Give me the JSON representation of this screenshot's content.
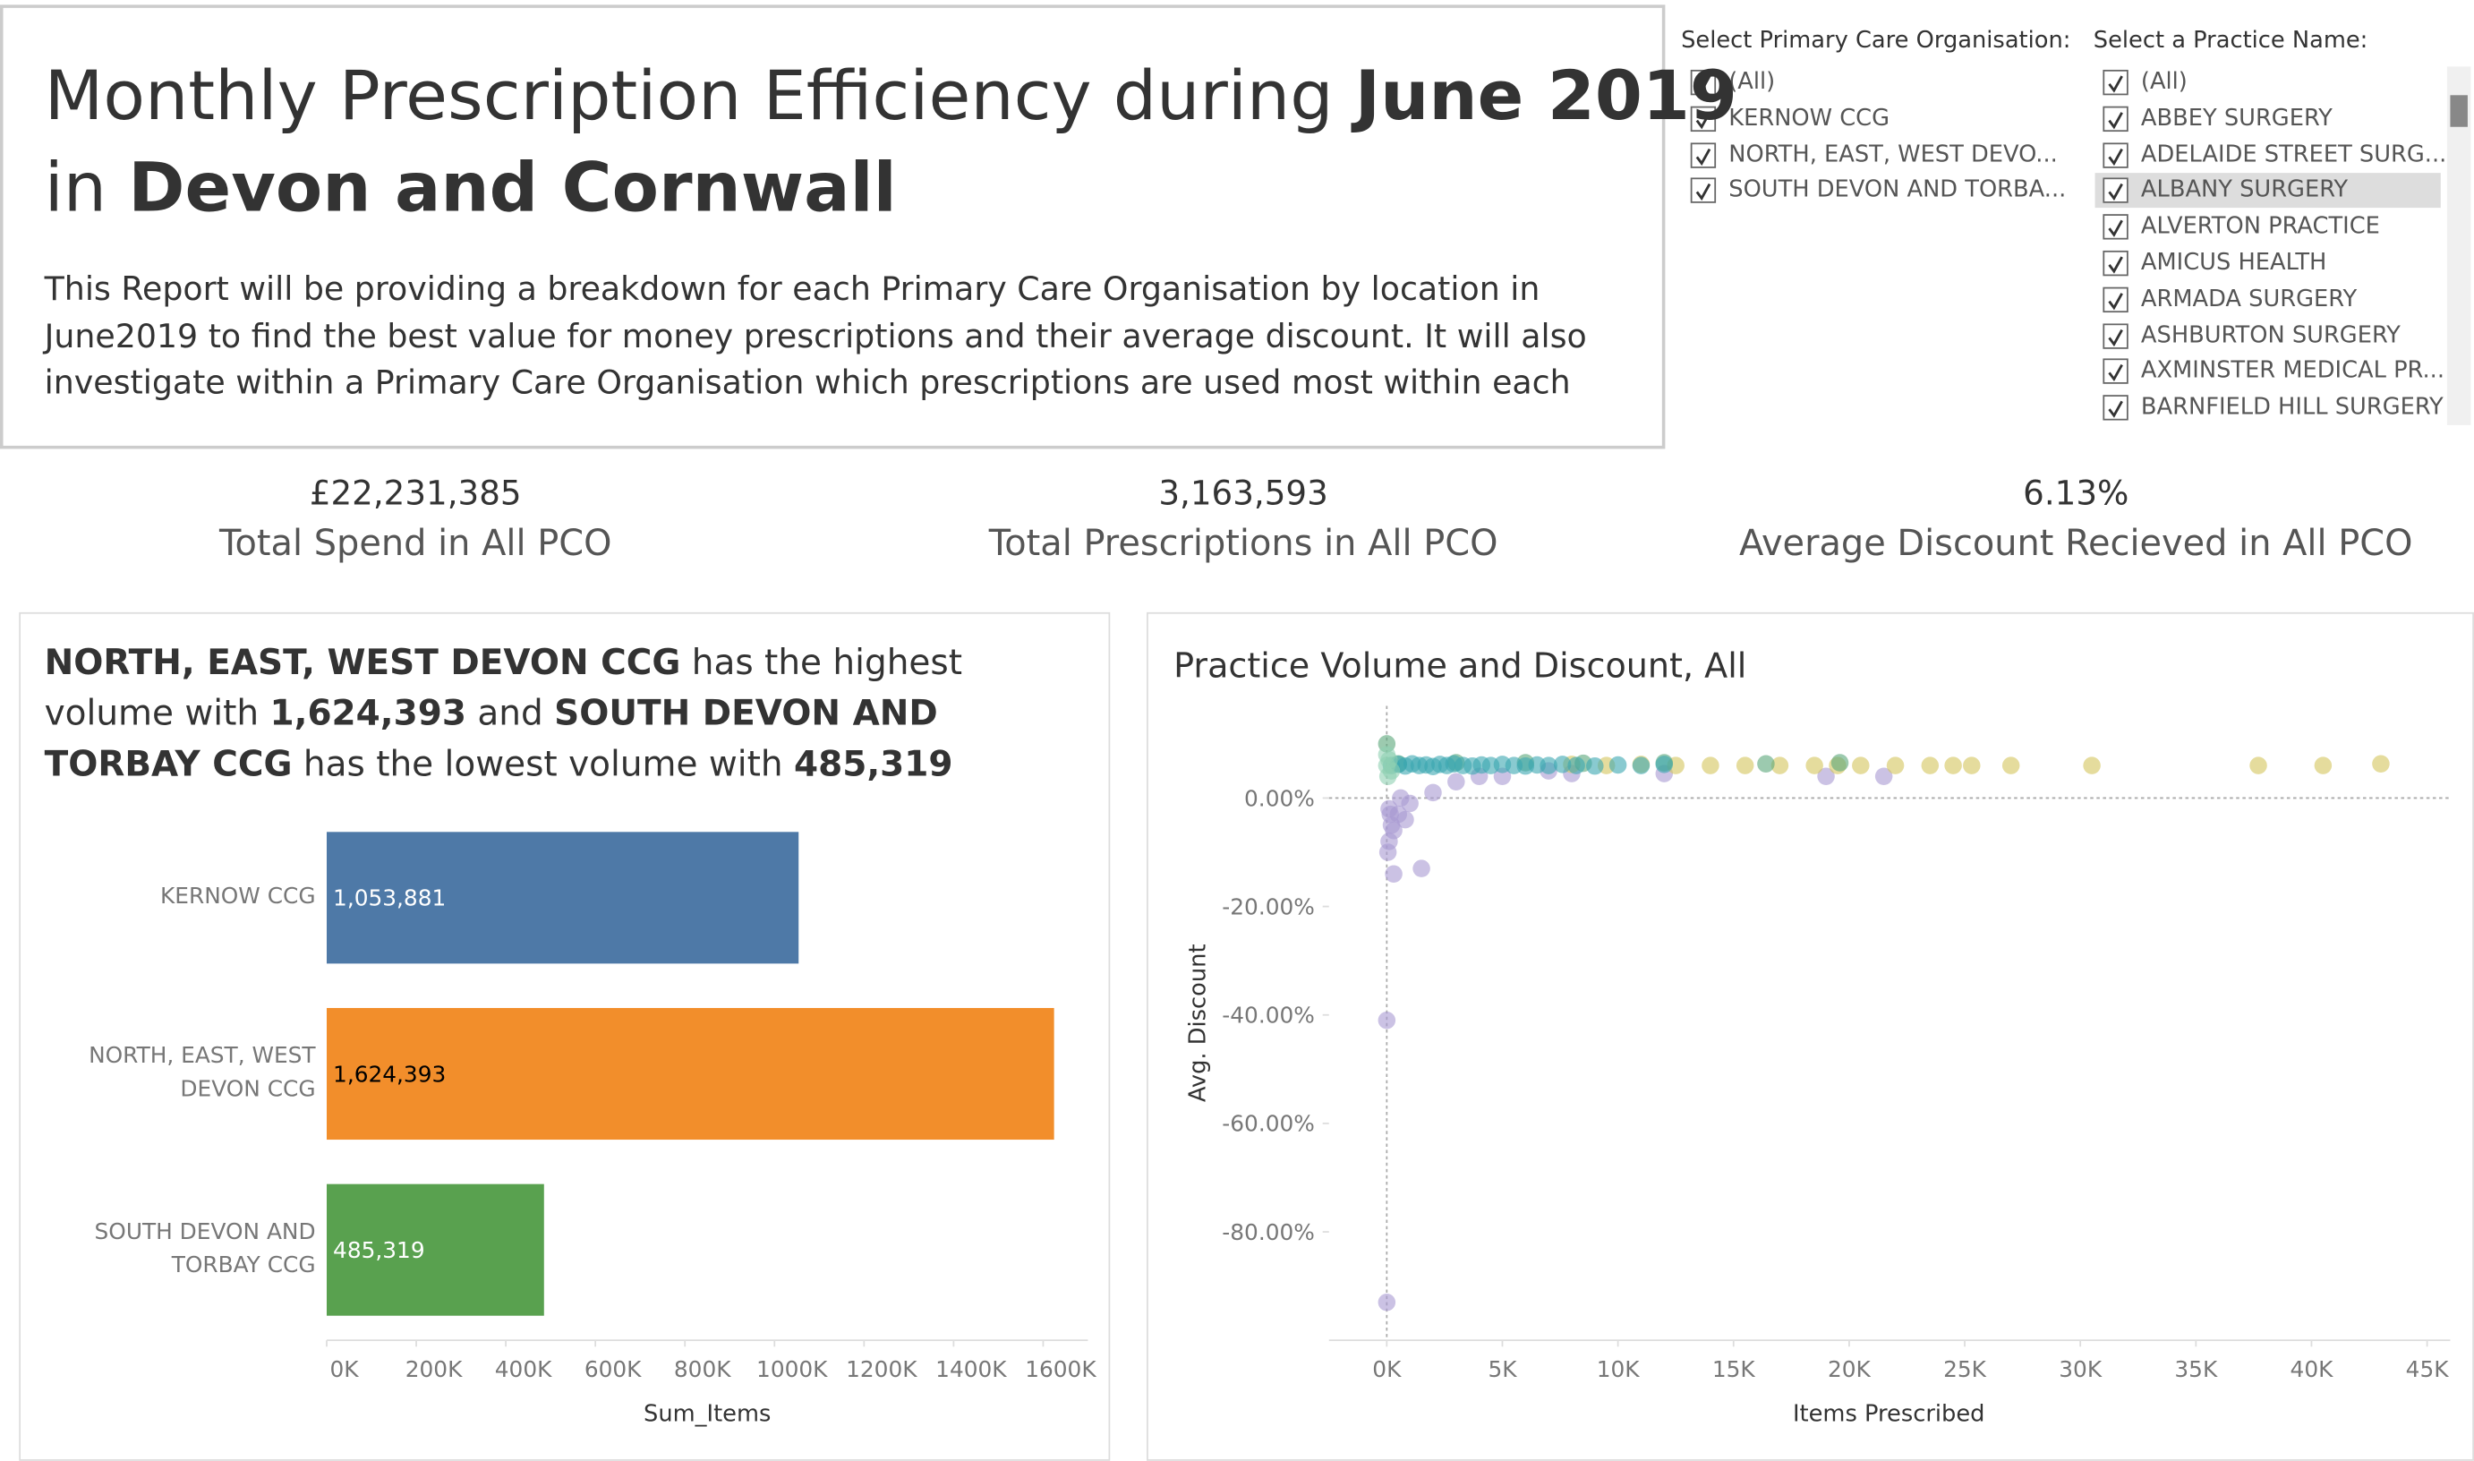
{
  "header": {
    "title_lines": [
      [
        {
          "text": "Monthly Prescription Efficiency during ",
          "bold": false
        },
        {
          "text": "June 2019",
          "bold": true
        }
      ],
      [
        {
          "text": "in ",
          "bold": false
        },
        {
          "text": "Devon and Cornwall",
          "bold": true
        }
      ]
    ],
    "description": "This Report will be providing a breakdown for each Primary Care Organisation by location in June2019 to find the best value for money prescriptions and their  average discount. It will also investigate within a Primary Care Organisation which prescriptions are used most within each"
  },
  "filters": [
    {
      "label": "Select Primary Care Organisation:",
      "items": [
        "(All)",
        "KERNOW CCG",
        "NORTH, EAST, WEST DEVO...",
        "SOUTH DEVON AND TORBA..."
      ],
      "highlighted": null
    },
    {
      "label": "Select a Practice Name:",
      "items": [
        "(All)",
        "ABBEY SURGERY",
        "ADELAIDE STREET SURG...",
        "ALBANY SURGERY",
        "ALVERTON PRACTICE",
        "AMICUS HEALTH",
        "ARMADA SURGERY",
        "ASHBURTON SURGERY",
        "AXMINSTER MEDICAL PR...",
        "BARNFIELD HILL SURGERY"
      ],
      "highlighted": 3
    }
  ],
  "kpis": [
    {
      "value": "£22,231,385",
      "label": "Total Spend in All PCO"
    },
    {
      "value": "3,163,593",
      "label": "Total Prescriptions in All PCO"
    },
    {
      "value": "6.13%",
      "label": "Average Discount Recieved in All PCO"
    }
  ],
  "chart_data": [
    {
      "type": "hbar",
      "summary": [
        {
          "text": "NORTH, EAST, WEST DEVON CCG",
          "bold": true
        },
        {
          "text": " has the highest volume with ",
          "bold": false
        },
        {
          "text": "1,624,393",
          "bold": true
        },
        {
          "text": "  and ",
          "bold": false
        },
        {
          "text": "SOUTH DEVON AND TORBAY CCG",
          "bold": true
        },
        {
          "text": " has the lowest volume with ",
          "bold": false
        },
        {
          "text": "485,319",
          "bold": true
        }
      ],
      "categories": [
        "KERNOW CCG",
        "NORTH, EAST, WEST DEVON CCG",
        "SOUTH DEVON AND TORBAY CCG"
      ],
      "values": [
        1053881,
        1624393,
        485319
      ],
      "value_labels": [
        "1,053,881",
        "1,624,393",
        "485,319"
      ],
      "colors": [
        "#4e79a7",
        "#f28e2b",
        "#59a14f"
      ],
      "label_colors": [
        "#ffffff",
        "#000000",
        "#ffffff"
      ],
      "xlim": [
        0,
        1700000
      ],
      "xticks": [
        {
          "value": 0,
          "label": "0K"
        },
        {
          "value": 200000,
          "label": "200K"
        },
        {
          "value": 400000,
          "label": "400K"
        },
        {
          "value": 600000,
          "label": "600K"
        },
        {
          "value": 800000,
          "label": "800K"
        },
        {
          "value": 1000000,
          "label": "1000K"
        },
        {
          "value": 1200000,
          "label": "1200K"
        },
        {
          "value": 1400000,
          "label": "1400K"
        },
        {
          "value": 1600000,
          "label": "1600K"
        }
      ],
      "x_label": "Sum_Items"
    },
    {
      "type": "scatter",
      "title": "Practice Volume and Discount,  All",
      "x_label": "Items Prescribed",
      "y_label": "Avg. Discount",
      "xlim": [
        -2500,
        46000
      ],
      "ylim": [
        -100,
        17
      ],
      "xticks": [
        {
          "value": 0,
          "label": "0K"
        },
        {
          "value": 5000,
          "label": "5K"
        },
        {
          "value": 10000,
          "label": "10K"
        },
        {
          "value": 15000,
          "label": "15K"
        },
        {
          "value": 20000,
          "label": "20K"
        },
        {
          "value": 25000,
          "label": "25K"
        },
        {
          "value": 30000,
          "label": "30K"
        },
        {
          "value": 35000,
          "label": "35K"
        },
        {
          "value": 40000,
          "label": "40K"
        },
        {
          "value": 45000,
          "label": "45K"
        }
      ],
      "yticks": [
        {
          "value": 0,
          "label": "0.00%"
        },
        {
          "value": -20,
          "label": "-20.00%"
        },
        {
          "value": -40,
          "label": "-40.00%"
        },
        {
          "value": -60,
          "label": "-60.00%"
        },
        {
          "value": -80,
          "label": "-80.00%"
        }
      ],
      "series": [
        {
          "color": "#a99ad2",
          "x": [
            0,
            0,
            300,
            1500,
            200,
            100,
            500,
            1000,
            2000,
            3000,
            4000,
            5000,
            7000,
            8000,
            12000,
            19000,
            21500,
            100,
            300,
            800,
            50,
            150,
            600
          ],
          "values": [
            -41,
            -93,
            -14,
            -13,
            -5,
            -2,
            -3,
            -1,
            1,
            3,
            4,
            4,
            5,
            4.5,
            4.5,
            4,
            4,
            -8,
            -6,
            -4,
            -10,
            -3,
            0
          ]
        },
        {
          "color": "#d4c55c",
          "x": [
            43000,
            40500,
            37700,
            30500,
            27000,
            25300,
            24500,
            23500,
            22000,
            20500,
            19500,
            18500,
            17000,
            15500,
            14000,
            12500,
            11000,
            9500,
            8000
          ],
          "values": [
            6.3,
            6,
            6,
            6,
            6,
            6,
            6,
            6,
            6,
            6,
            6,
            6,
            6,
            6,
            6,
            6,
            6.2,
            6,
            6.2
          ]
        },
        {
          "color": "#5aa67a",
          "x": [
            19600,
            16400,
            12000,
            8500,
            6000,
            3000,
            500,
            0
          ],
          "values": [
            6.5,
            6.3,
            6.5,
            6.4,
            6.5,
            6.5,
            6.3,
            10
          ]
        },
        {
          "color": "#3aa6b0",
          "x": [
            200,
            500,
            800,
            1100,
            1400,
            1700,
            2000,
            2300,
            2600,
            2900,
            3300,
            3700,
            4100,
            4500,
            5000,
            5500,
            6000,
            6500,
            7000,
            7600,
            8200,
            9000,
            10000,
            11000,
            12000
          ],
          "values": [
            6,
            6.2,
            5.9,
            6.3,
            6,
            6.1,
            5.8,
            6.2,
            6,
            6.3,
            6,
            5.9,
            6.1,
            6,
            6.2,
            6,
            5.9,
            6.1,
            6,
            6.2,
            6,
            5.9,
            6.1,
            6,
            6.2
          ]
        },
        {
          "color": "#8fd1b2",
          "x": [
            0,
            100,
            200,
            0,
            50
          ],
          "values": [
            6,
            7,
            5,
            8,
            4
          ]
        }
      ]
    }
  ]
}
